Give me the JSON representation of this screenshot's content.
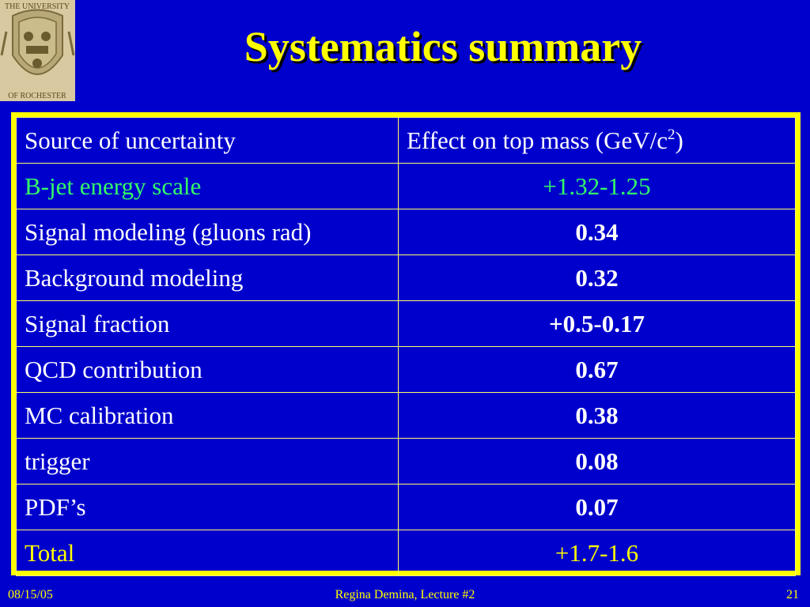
{
  "header": {
    "seal_top_text": "THE UNIVERSITY",
    "seal_bottom_text": "OF ROCHESTER",
    "title": "Systematics summary"
  },
  "table": {
    "columns": [
      "Source of uncertainty",
      "Effect on top mass (GeV/c",
      "2",
      ")"
    ],
    "rows": [
      {
        "source": "B-jet energy scale",
        "effect": "+1.32-1.25"
      },
      {
        "source": "Signal modeling (gluons rad)",
        "effect": "0.34"
      },
      {
        "source": "Background modeling",
        "effect": "0.32"
      },
      {
        "source": "Signal fraction",
        "effect": "+0.5-0.17"
      },
      {
        "source": "QCD contribution",
        "effect": "0.67"
      },
      {
        "source": "MC calibration",
        "effect": "0.38"
      },
      {
        "source": "trigger",
        "effect": "0.08"
      },
      {
        "source": "PDF’s",
        "effect": "0.07"
      },
      {
        "source": "Total",
        "effect": "+1.7-1.6"
      }
    ]
  },
  "footer": {
    "date": "08/15/05",
    "author": "Regina Demina, Lecture #2",
    "page": "21"
  },
  "colors": {
    "background": "#0000cc",
    "title": "#ffff00",
    "border": "#ffff00",
    "text": "#ffffff",
    "highlight_green": "#33ff66",
    "highlight_yellow": "#ffff00"
  }
}
